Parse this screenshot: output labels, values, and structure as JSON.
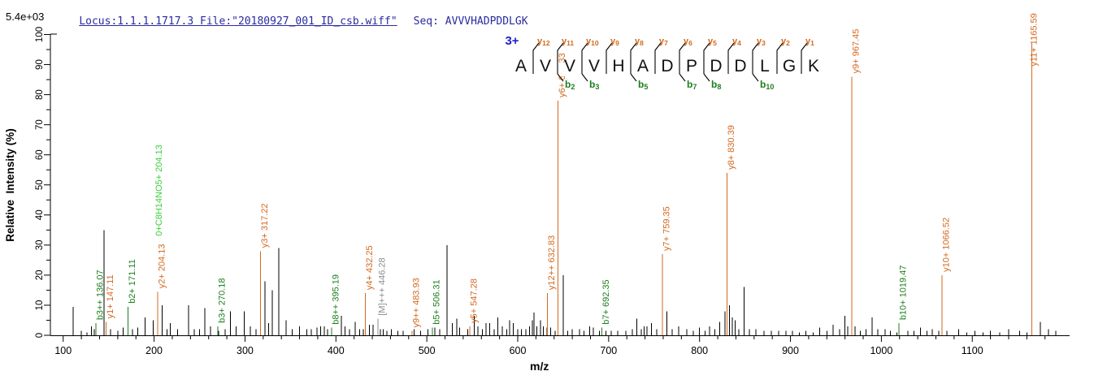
{
  "header": {
    "locus_file": "Locus:1.1.1.1717.3 File:\"20180927_001_ID_csb.wiff\"",
    "seq_label": "Seq: AVVVHADPDDLGK"
  },
  "colors": {
    "annotation_orange": "#D2691E",
    "annotation_green": "#1E7E1E",
    "annotation_lightgreen": "#3CCE3C",
    "annotation_gray": "#8C8C8C",
    "header_navy": "#2A2AA0",
    "charge_blue": "#1F1FCC",
    "peak_black": "#000000"
  },
  "chart_data": {
    "type": "bar",
    "subtype": "ms2-centroid-spectrum",
    "title": "",
    "xlabel": "m/z",
    "ylabel": "Relative  Intensity (%)",
    "y_scale_note": "5.4e+03",
    "xlim": [
      76,
      1206
    ],
    "ylim": [
      0,
      100
    ],
    "x_ticks": [
      100,
      200,
      300,
      400,
      500,
      600,
      700,
      800,
      900,
      1000,
      1100
    ],
    "x_minor_step": 20,
    "y_ticks": [
      0,
      10,
      20,
      30,
      40,
      50,
      60,
      70,
      80,
      90,
      100
    ],
    "y_minor_step": 5,
    "grid": false,
    "peptide": {
      "charge": "3+",
      "residues": [
        "A",
        "V",
        "V",
        "V",
        "H",
        "A",
        "D",
        "P",
        "D",
        "D",
        "L",
        "G",
        "K"
      ],
      "y_ion_numbers": [
        12,
        11,
        10,
        9,
        8,
        7,
        6,
        5,
        4,
        3,
        2,
        1
      ],
      "b_ion_positions": [
        2,
        3,
        5,
        7,
        8,
        10
      ]
    },
    "annotated_peaks": [
      {
        "ion": "b3++",
        "mz": 136.07,
        "pct": 4,
        "color": "green",
        "label": "b3++ 136.07"
      },
      {
        "ion": "y1+",
        "mz": 147.11,
        "pct": 4.5,
        "color": "orange",
        "label": "y1+ 147.11"
      },
      {
        "ion": "b2+",
        "mz": 171.11,
        "pct": 9.5,
        "color": "green",
        "label": "b2+ 171.11"
      },
      {
        "ion": "y2+",
        "mz": 204.13,
        "pct": 14.5,
        "color": "orange",
        "label": "y2+ 204.13"
      },
      {
        "ion": "b3+",
        "mz": 270.18,
        "pct": 3,
        "color": "green",
        "label": "b3+ 270.18"
      },
      {
        "ion": "y3+",
        "mz": 317.22,
        "pct": 28,
        "color": "orange",
        "label": "y3+ 317.22"
      },
      {
        "ion": "b8++",
        "mz": 395.19,
        "pct": 2.5,
        "color": "green",
        "label": "b8++ 395.19"
      },
      {
        "ion": "y4+",
        "mz": 432.25,
        "pct": 14,
        "color": "orange",
        "label": "y4+ 432.25"
      },
      {
        "ion": "[M]+++",
        "mz": 446.28,
        "pct": 5.5,
        "color": "gray",
        "label": "[M]+++ 446.28"
      },
      {
        "ion": "y9++",
        "mz": 483.93,
        "pct": 1.5,
        "color": "orange",
        "label": "y9++ 483.93"
      },
      {
        "ion": "b5+",
        "mz": 506.31,
        "pct": 2.5,
        "color": "green",
        "label": "b5+ 506.31"
      },
      {
        "ion": "y5+",
        "mz": 547.28,
        "pct": 3,
        "color": "orange",
        "label": "y5+ 547.28"
      },
      {
        "ion": "y12++",
        "mz": 632.83,
        "pct": 14,
        "color": "orange",
        "label": "y12++ 632.83"
      },
      {
        "ion": "y6+",
        "mz": 644.33,
        "pct": 78,
        "color": "orange",
        "label": "y6+ 644.33"
      },
      {
        "ion": "b7+",
        "mz": 692.35,
        "pct": 2.5,
        "color": "green",
        "label": "b7+ 692.35"
      },
      {
        "ion": "y7+",
        "mz": 759.35,
        "pct": 27,
        "color": "orange",
        "label": "y7+ 759.35"
      },
      {
        "ion": "y8+",
        "mz": 830.39,
        "pct": 54,
        "color": "orange",
        "label": "y8+ 830.39"
      },
      {
        "ion": "y9+",
        "mz": 967.45,
        "pct": 86,
        "color": "orange",
        "label": "y9+ 967.45"
      },
      {
        "ion": "b10+",
        "mz": 1019.47,
        "pct": 4,
        "color": "green",
        "label": "b10+ 1019.47"
      },
      {
        "ion": "y10+",
        "mz": 1066.52,
        "pct": 20,
        "color": "orange",
        "label": "y10+ 1066.52"
      },
      {
        "ion": "y11+",
        "mz": 1165.59,
        "pct": 97,
        "color": "orange",
        "label": "y11+ 1165.59"
      }
    ],
    "extra_labels": [
      {
        "text": "0+C8H14NO5+ 204.13",
        "color": "lightgreen",
        "mz": 200.6,
        "bottom_pct": 33
      }
    ],
    "unannotated_peaks": [
      [
        111,
        9.5
      ],
      [
        120,
        1.5
      ],
      [
        126,
        1
      ],
      [
        131,
        3
      ],
      [
        134,
        2
      ],
      [
        145,
        35
      ],
      [
        152,
        2
      ],
      [
        160,
        1.5
      ],
      [
        166,
        2.5
      ],
      [
        176,
        2
      ],
      [
        182,
        2.5
      ],
      [
        190,
        6
      ],
      [
        199,
        5
      ],
      [
        209,
        10
      ],
      [
        214,
        2
      ],
      [
        218,
        4
      ],
      [
        226,
        2
      ],
      [
        238,
        10
      ],
      [
        244,
        2
      ],
      [
        250,
        2
      ],
      [
        256,
        9
      ],
      [
        262,
        3
      ],
      [
        271,
        1.5
      ],
      [
        278,
        2
      ],
      [
        284,
        8
      ],
      [
        290,
        3
      ],
      [
        299,
        8
      ],
      [
        306,
        3
      ],
      [
        312,
        2
      ],
      [
        322,
        18
      ],
      [
        326,
        4
      ],
      [
        330,
        15
      ],
      [
        337,
        29
      ],
      [
        345,
        5
      ],
      [
        352,
        2
      ],
      [
        360,
        3
      ],
      [
        368,
        2
      ],
      [
        373,
        2
      ],
      [
        379,
        2.5
      ],
      [
        383,
        3
      ],
      [
        387,
        3
      ],
      [
        391,
        2
      ],
      [
        406,
        6.5
      ],
      [
        410,
        3
      ],
      [
        415,
        2
      ],
      [
        421,
        4.5
      ],
      [
        426,
        2
      ],
      [
        430,
        2
      ],
      [
        437,
        3.5
      ],
      [
        441,
        3.5
      ],
      [
        449,
        2
      ],
      [
        452,
        2
      ],
      [
        456,
        1.5
      ],
      [
        461,
        2
      ],
      [
        468,
        1.5
      ],
      [
        474,
        1.5
      ],
      [
        486,
        2
      ],
      [
        493,
        1.5
      ],
      [
        501,
        2
      ],
      [
        509,
        2.5
      ],
      [
        514,
        2
      ],
      [
        522,
        30
      ],
      [
        528,
        4
      ],
      [
        533,
        5.5
      ],
      [
        536,
        2.5
      ],
      [
        545,
        2
      ],
      [
        552,
        6.5
      ],
      [
        556,
        3
      ],
      [
        561,
        2
      ],
      [
        565,
        4
      ],
      [
        569,
        4
      ],
      [
        574,
        2
      ],
      [
        578,
        6
      ],
      [
        583,
        3
      ],
      [
        588,
        2
      ],
      [
        591,
        5
      ],
      [
        595,
        4
      ],
      [
        600,
        2
      ],
      [
        604,
        2
      ],
      [
        609,
        2
      ],
      [
        613,
        3
      ],
      [
        616,
        5
      ],
      [
        618,
        7.5
      ],
      [
        621,
        3
      ],
      [
        625,
        5
      ],
      [
        628,
        3
      ],
      [
        632,
        2.5
      ],
      [
        636,
        2.5
      ],
      [
        641,
        1.5
      ],
      [
        650,
        20
      ],
      [
        655,
        1.5
      ],
      [
        660,
        2
      ],
      [
        668,
        2
      ],
      [
        673,
        1.5
      ],
      [
        679,
        3
      ],
      [
        683,
        2.5
      ],
      [
        690,
        1.5
      ],
      [
        697,
        1.5
      ],
      [
        703,
        1.5
      ],
      [
        710,
        1.5
      ],
      [
        719,
        1.5
      ],
      [
        726,
        2
      ],
      [
        731,
        5.5
      ],
      [
        736,
        2
      ],
      [
        739,
        3
      ],
      [
        742,
        3
      ],
      [
        747,
        4
      ],
      [
        753,
        2
      ],
      [
        764,
        8
      ],
      [
        770,
        2
      ],
      [
        777,
        3
      ],
      [
        786,
        2
      ],
      [
        793,
        1.5
      ],
      [
        800,
        2.5
      ],
      [
        806,
        1.5
      ],
      [
        811,
        3
      ],
      [
        817,
        2
      ],
      [
        822,
        4.5
      ],
      [
        828,
        8
      ],
      [
        833,
        10
      ],
      [
        836,
        6
      ],
      [
        839,
        5
      ],
      [
        843,
        2
      ],
      [
        849,
        16
      ],
      [
        855,
        2
      ],
      [
        862,
        2
      ],
      [
        871,
        1.5
      ],
      [
        879,
        1.5
      ],
      [
        887,
        1.5
      ],
      [
        895,
        1.5
      ],
      [
        902,
        1.5
      ],
      [
        910,
        1
      ],
      [
        917,
        1.5
      ],
      [
        925,
        1
      ],
      [
        932,
        2.5
      ],
      [
        940,
        1.5
      ],
      [
        947,
        3.5
      ],
      [
        954,
        2
      ],
      [
        960,
        6.5
      ],
      [
        963,
        3
      ],
      [
        971,
        3
      ],
      [
        977,
        1.5
      ],
      [
        983,
        2
      ],
      [
        990,
        6
      ],
      [
        996,
        2
      ],
      [
        1004,
        2
      ],
      [
        1010,
        1.5
      ],
      [
        1017,
        1
      ],
      [
        1029,
        1.5
      ],
      [
        1036,
        1.5
      ],
      [
        1043,
        2.5
      ],
      [
        1050,
        1.5
      ],
      [
        1056,
        2
      ],
      [
        1063,
        1.5
      ],
      [
        1072,
        1.5
      ],
      [
        1085,
        2
      ],
      [
        1094,
        1
      ],
      [
        1103,
        1.5
      ],
      [
        1112,
        1
      ],
      [
        1120,
        1.5
      ],
      [
        1130,
        1
      ],
      [
        1140,
        2
      ],
      [
        1152,
        1.5
      ],
      [
        1160,
        1
      ],
      [
        1175,
        4.5
      ],
      [
        1184,
        2
      ],
      [
        1192,
        1.5
      ]
    ]
  }
}
